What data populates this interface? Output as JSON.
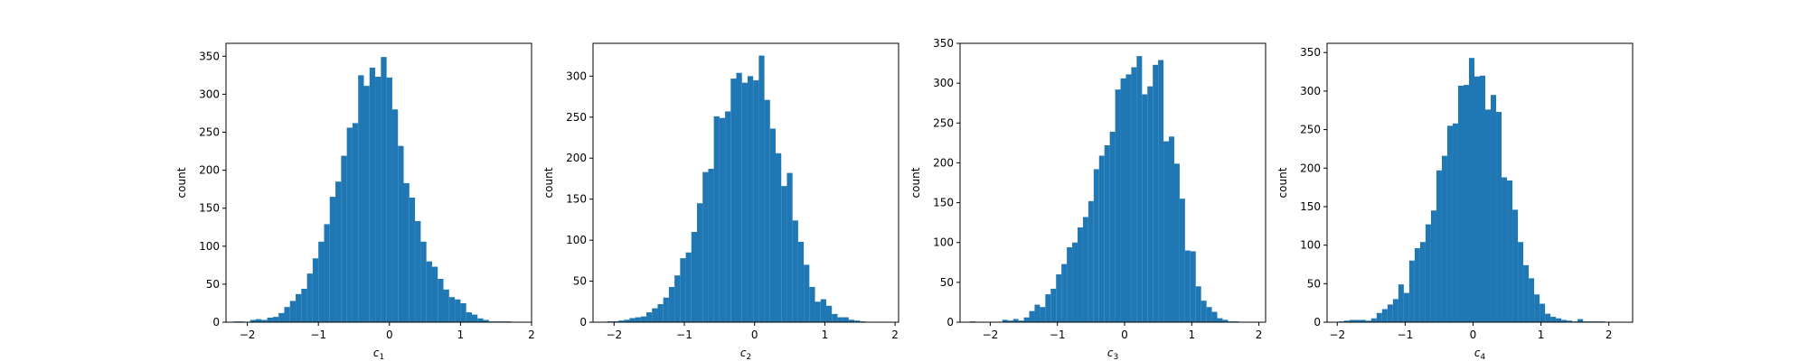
{
  "chart_data": [
    {
      "type": "bar",
      "xlabel": "c",
      "xlabel_sub": "1",
      "ylabel": "count",
      "xlim": [
        -2.3,
        2.0
      ],
      "ylim": [
        0,
        367
      ],
      "xticks": [
        -2,
        -1,
        0,
        1,
        2
      ],
      "xtick_labels": [
        "−2",
        "−1",
        "0",
        "1",
        "2"
      ],
      "yticks": [
        0,
        50,
        100,
        150,
        200,
        250,
        300,
        350
      ],
      "ytick_labels": [
        "0",
        "50",
        "100",
        "150",
        "200",
        "250",
        "300",
        "350"
      ],
      "color": "#1f77b4",
      "bin_start": -2.2,
      "bin_width": 0.08,
      "values": [
        1,
        1,
        0,
        3,
        4,
        3,
        6,
        7,
        12,
        20,
        28,
        37,
        44,
        64,
        84,
        106,
        129,
        165,
        185,
        219,
        256,
        262,
        325,
        311,
        335,
        323,
        349,
        322,
        280,
        232,
        183,
        164,
        133,
        106,
        80,
        73,
        57,
        43,
        33,
        30,
        25,
        13,
        10,
        5,
        3,
        1,
        1,
        1,
        1
      ]
    },
    {
      "type": "bar",
      "xlabel": "c",
      "xlabel_sub": "2",
      "ylabel": "count",
      "xlim": [
        -2.3,
        2.05
      ],
      "ylim": [
        0,
        340
      ],
      "xticks": [
        -2,
        -1,
        0,
        1,
        2
      ],
      "xtick_labels": [
        "−2",
        "−1",
        "0",
        "1",
        "2"
      ],
      "yticks": [
        0,
        50,
        100,
        150,
        200,
        250,
        300
      ],
      "ytick_labels": [
        "0",
        "50",
        "100",
        "150",
        "200",
        "250",
        "300"
      ],
      "color": "#1f77b4",
      "bin_start": -2.1,
      "bin_width": 0.08,
      "values": [
        1,
        1,
        2,
        3,
        5,
        6,
        7,
        12,
        17,
        22,
        30,
        43,
        57,
        78,
        85,
        110,
        145,
        183,
        187,
        251,
        249,
        257,
        297,
        304,
        292,
        300,
        295,
        325,
        271,
        236,
        206,
        166,
        182,
        124,
        98,
        70,
        43,
        25,
        28,
        20,
        10,
        6,
        6,
        3,
        2,
        1
      ]
    },
    {
      "type": "bar",
      "xlabel": "c",
      "xlabel_sub": "3",
      "ylabel": "count",
      "xlim": [
        -2.45,
        2.1
      ],
      "ylim": [
        0,
        350
      ],
      "xticks": [
        -2,
        -1,
        0,
        1,
        2
      ],
      "xtick_labels": [
        "−2",
        "−1",
        "0",
        "1",
        "2"
      ],
      "yticks": [
        0,
        50,
        100,
        150,
        200,
        250,
        300,
        350
      ],
      "ytick_labels": [
        "0",
        "50",
        "100",
        "150",
        "200",
        "250",
        "300",
        "350"
      ],
      "color": "#1f77b4",
      "bin_start": -2.3,
      "bin_width": 0.08,
      "values": [
        1,
        0,
        0,
        0,
        0,
        0,
        3,
        2,
        4,
        2,
        6,
        14,
        22,
        19,
        35,
        42,
        60,
        73,
        94,
        100,
        119,
        132,
        152,
        192,
        209,
        222,
        239,
        292,
        306,
        311,
        320,
        334,
        286,
        296,
        323,
        329,
        227,
        233,
        199,
        155,
        90,
        89,
        45,
        27,
        19,
        13,
        5,
        3,
        1,
        1
      ]
    },
    {
      "type": "bar",
      "xlabel": "c",
      "xlabel_sub": "4",
      "ylabel": "count",
      "xlim": [
        -2.15,
        2.35
      ],
      "ylim": [
        0,
        362
      ],
      "xticks": [
        -2,
        -1,
        0,
        1,
        2
      ],
      "xtick_labels": [
        "−2",
        "−1",
        "0",
        "1",
        "2"
      ],
      "yticks": [
        0,
        50,
        100,
        150,
        200,
        250,
        300,
        350
      ],
      "ytick_labels": [
        "0",
        "50",
        "100",
        "150",
        "200",
        "250",
        "300",
        "350"
      ],
      "color": "#1f77b4",
      "bin_start": -1.98,
      "bin_width": 0.08,
      "values": [
        1,
        2,
        3,
        3,
        3,
        2,
        5,
        12,
        17,
        23,
        30,
        49,
        38,
        80,
        96,
        104,
        127,
        145,
        197,
        216,
        255,
        258,
        307,
        308,
        343,
        319,
        320,
        276,
        295,
        273,
        188,
        184,
        146,
        104,
        74,
        57,
        36,
        24,
        11,
        7,
        5,
        3,
        2,
        1,
        4,
        1,
        1,
        1,
        1
      ]
    }
  ]
}
